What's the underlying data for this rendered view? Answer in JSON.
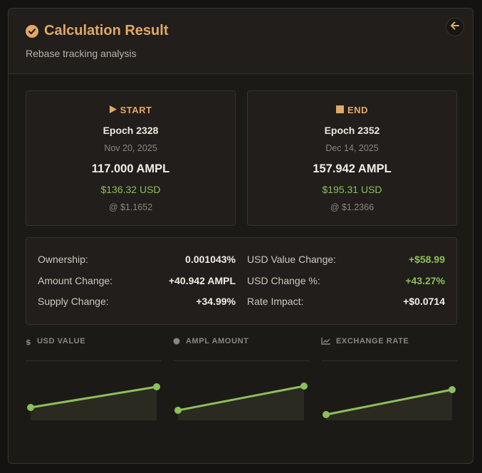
{
  "header": {
    "title": "Calculation Result",
    "subtitle": "Rebase tracking analysis",
    "check_icon": "check-circle-icon",
    "back_icon": "arrow-left-icon"
  },
  "start": {
    "label": "START",
    "icon": "play-icon",
    "epoch": "Epoch 2328",
    "date": "Nov 20, 2025",
    "amount": "117.000 AMPL",
    "usd": "$136.32 USD",
    "rate": "@ $1.1652"
  },
  "end": {
    "label": "END",
    "icon": "stop-icon",
    "epoch": "Epoch 2352",
    "date": "Dec 14, 2025",
    "amount": "157.942 AMPL",
    "usd": "$195.31 USD",
    "rate": "@ $1.2366"
  },
  "stats": {
    "ownership_label": "Ownership:",
    "ownership_value": "0.001043%",
    "amount_change_label": "Amount Change:",
    "amount_change_value": "+40.942 AMPL",
    "supply_change_label": "Supply Change:",
    "supply_change_value": "+34.99%",
    "usd_value_change_label": "USD Value Change:",
    "usd_value_change_value": "+$58.99",
    "usd_change_pct_label": "USD Change %:",
    "usd_change_pct_value": "+43.27%",
    "rate_impact_label": "Rate Impact:",
    "rate_impact_value": "+$0.0714"
  },
  "colors": {
    "accent": "#e2a866",
    "positive": "#8cbf5d",
    "background": "#1c1a17"
  },
  "chart_data": [
    {
      "type": "line",
      "title": "USD VALUE",
      "icon": "dollar-icon",
      "x": [
        "Nov 20, 2025",
        "Dec 14, 2025"
      ],
      "values": [
        136.32,
        195.31
      ]
    },
    {
      "type": "line",
      "title": "AMPL AMOUNT",
      "icon": "dot-icon",
      "x": [
        "Nov 20, 2025",
        "Dec 14, 2025"
      ],
      "values": [
        117.0,
        157.942
      ]
    },
    {
      "type": "line",
      "title": "EXCHANGE RATE",
      "icon": "trend-chart-icon",
      "x": [
        "Nov 20, 2025",
        "Dec 14, 2025"
      ],
      "values": [
        1.1652,
        1.2366
      ]
    }
  ]
}
